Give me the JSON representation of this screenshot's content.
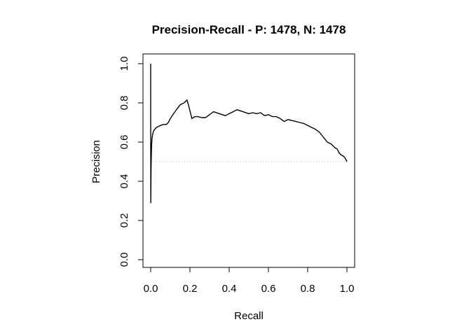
{
  "chart_data": {
    "type": "line",
    "title": "Precision-Recall - P: 1478, N: 1478",
    "xlabel": "Recall",
    "ylabel": "Precision",
    "xlim": [
      0,
      1
    ],
    "ylim": [
      0,
      1
    ],
    "x_ticks": [
      "0.0",
      "0.2",
      "0.4",
      "0.6",
      "0.8",
      "1.0"
    ],
    "y_ticks": [
      "0.0",
      "0.2",
      "0.4",
      "0.6",
      "0.8",
      "1.0"
    ],
    "grid": false,
    "baseline": {
      "y": 0.5,
      "style": "dotted",
      "color": "#bbbbbb"
    },
    "series": [
      {
        "color": "#000000",
        "x": [
          0.0,
          0.0,
          0.0005,
          0.001,
          0.0015,
          0.002,
          0.003,
          0.004,
          0.005,
          0.007,
          0.01,
          0.014,
          0.02,
          0.03,
          0.04,
          0.05,
          0.065,
          0.08,
          0.09,
          0.1,
          0.12,
          0.15,
          0.17,
          0.185,
          0.195,
          0.21,
          0.225,
          0.24,
          0.26,
          0.28,
          0.3,
          0.32,
          0.35,
          0.38,
          0.4,
          0.42,
          0.44,
          0.47,
          0.5,
          0.52,
          0.54,
          0.56,
          0.58,
          0.6,
          0.62,
          0.64,
          0.66,
          0.68,
          0.7,
          0.72,
          0.74,
          0.76,
          0.78,
          0.8,
          0.82,
          0.84,
          0.86,
          0.88,
          0.9,
          0.92,
          0.94,
          0.95,
          0.96,
          0.97,
          0.98,
          0.99,
          1.0
        ],
        "y": [
          1.0,
          0.72,
          0.29,
          0.35,
          0.42,
          0.47,
          0.52,
          0.56,
          0.59,
          0.62,
          0.64,
          0.655,
          0.665,
          0.675,
          0.68,
          0.685,
          0.69,
          0.69,
          0.7,
          0.72,
          0.75,
          0.79,
          0.8,
          0.815,
          0.78,
          0.72,
          0.73,
          0.73,
          0.725,
          0.725,
          0.74,
          0.755,
          0.745,
          0.735,
          0.745,
          0.755,
          0.765,
          0.755,
          0.745,
          0.75,
          0.745,
          0.75,
          0.735,
          0.74,
          0.73,
          0.73,
          0.72,
          0.705,
          0.715,
          0.71,
          0.705,
          0.7,
          0.695,
          0.685,
          0.675,
          0.665,
          0.65,
          0.625,
          0.6,
          0.59,
          0.57,
          0.565,
          0.545,
          0.535,
          0.53,
          0.52,
          0.5
        ]
      }
    ]
  }
}
